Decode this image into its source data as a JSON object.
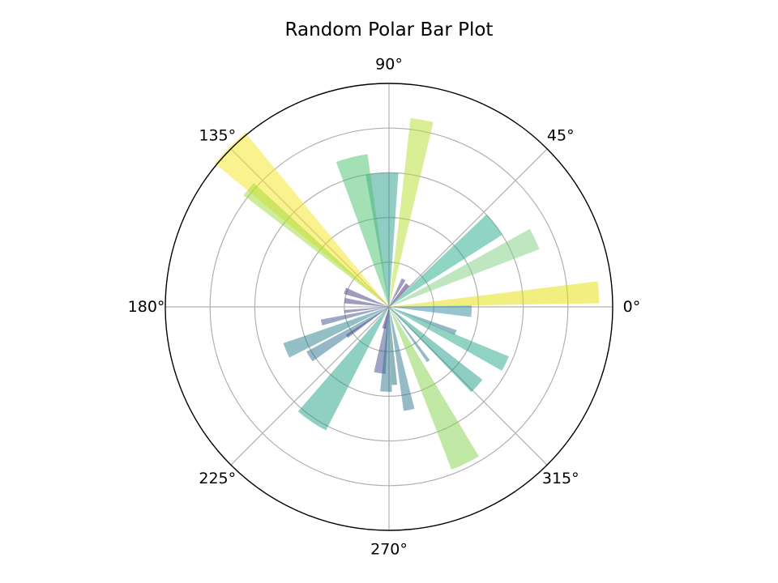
{
  "chart_data": {
    "type": "bar",
    "projection": "polar",
    "title": "Random Polar Bar Plot",
    "theta_unit": "degrees",
    "theta_tick_labels": [
      "0°",
      "45°",
      "90°",
      "135°",
      "180°",
      "225°",
      "270°",
      "315°"
    ],
    "theta_ticks": [
      0,
      45,
      90,
      135,
      180,
      225,
      270,
      315
    ],
    "r_gridlines": [
      2,
      4,
      6,
      8
    ],
    "r_tick_labels_shown": false,
    "rlim": [
      0,
      10
    ],
    "grid": true,
    "colormap": "viridis",
    "bar_alpha": 0.5,
    "bars": [
      {
        "theta": 4,
        "r": 9.4,
        "width": 6,
        "color": "#e3df00"
      },
      {
        "theta": 357,
        "r": 3.7,
        "width": 8,
        "color": "#2f8aa0"
      },
      {
        "theta": 25,
        "r": 7.2,
        "width": 8,
        "color": "#7ed07f"
      },
      {
        "theta": 38,
        "r": 6.0,
        "width": 11,
        "color": "#21ab8a"
      },
      {
        "theta": 50,
        "r": 1.3,
        "width": 9,
        "color": "#3a1f6f"
      },
      {
        "theta": 62,
        "r": 1.4,
        "width": 8,
        "color": "#4a3a7f"
      },
      {
        "theta": 80,
        "r": 8.5,
        "width": 7,
        "color": "#b5de2b"
      },
      {
        "theta": 93,
        "r": 6.0,
        "width": 14,
        "color": "#23998c"
      },
      {
        "theta": 104,
        "r": 6.9,
        "width": 12,
        "color": "#4ac16d"
      },
      {
        "theta": 135,
        "r": 10.1,
        "width": 11,
        "color": "#f6e51e"
      },
      {
        "theta": 140,
        "r": 8.2,
        "width": 5,
        "color": "#9ed93a"
      },
      {
        "theta": 160,
        "r": 2.1,
        "width": 8,
        "color": "#3f3b80"
      },
      {
        "theta": 172,
        "r": 2.0,
        "width": 7,
        "color": "#403a80"
      },
      {
        "theta": 186,
        "r": 2.0,
        "width": 4,
        "color": "#414287"
      },
      {
        "theta": 193,
        "r": 3.1,
        "width": 5,
        "color": "#3b528b"
      },
      {
        "theta": 203,
        "r": 5.0,
        "width": 8,
        "color": "#26828e"
      },
      {
        "theta": 212,
        "r": 4.2,
        "width": 7,
        "color": "#2e6f8e"
      },
      {
        "theta": 215,
        "r": 2.3,
        "width": 4,
        "color": "#433e85"
      },
      {
        "theta": 236,
        "r": 6.2,
        "width": 14,
        "color": "#1fa187"
      },
      {
        "theta": 257,
        "r": 1.0,
        "width": 10,
        "color": "#482777"
      },
      {
        "theta": 262,
        "r": 3.0,
        "width": 10,
        "color": "#3e4a89"
      },
      {
        "theta": 268,
        "r": 3.8,
        "width": 8,
        "color": "#2c738e"
      },
      {
        "theta": 274,
        "r": 3.5,
        "width": 4,
        "color": "#1f6f6e"
      },
      {
        "theta": 281,
        "r": 4.7,
        "width": 6,
        "color": "#2a788e"
      },
      {
        "theta": 296,
        "r": 7.8,
        "width": 10,
        "color": "#84d44b"
      },
      {
        "theta": 306,
        "r": 3.0,
        "width": 3,
        "color": "#2b758e"
      },
      {
        "theta": 318,
        "r": 5.3,
        "width": 8,
        "color": "#1e9b8a"
      },
      {
        "theta": 334,
        "r": 5.8,
        "width": 7,
        "color": "#22a785"
      },
      {
        "theta": 339,
        "r": 3.2,
        "width": 4,
        "color": "#2c728e"
      }
    ]
  }
}
